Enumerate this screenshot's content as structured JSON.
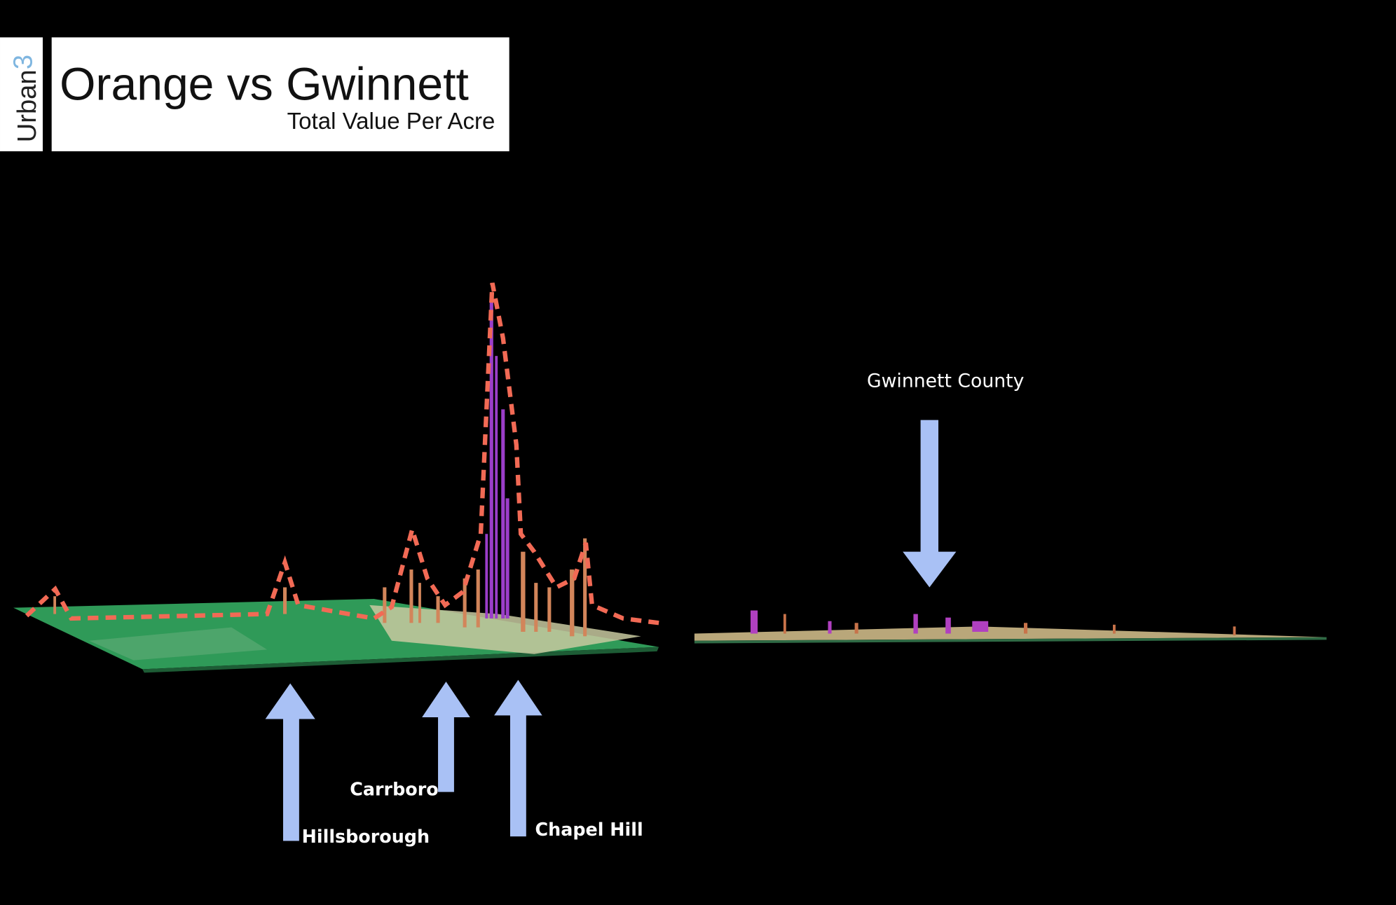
{
  "header": {
    "logo": {
      "word": "Urban",
      "superscript": "3"
    },
    "title": "Orange vs Gwinnett",
    "subtitle": "Total Value Per Acre"
  },
  "labels": {
    "gwinnett": "Gwinnett County",
    "carrboro": "Carrboro",
    "hillsborough": "Hillsborough",
    "chapel_hill": "Chapel Hill"
  }
}
